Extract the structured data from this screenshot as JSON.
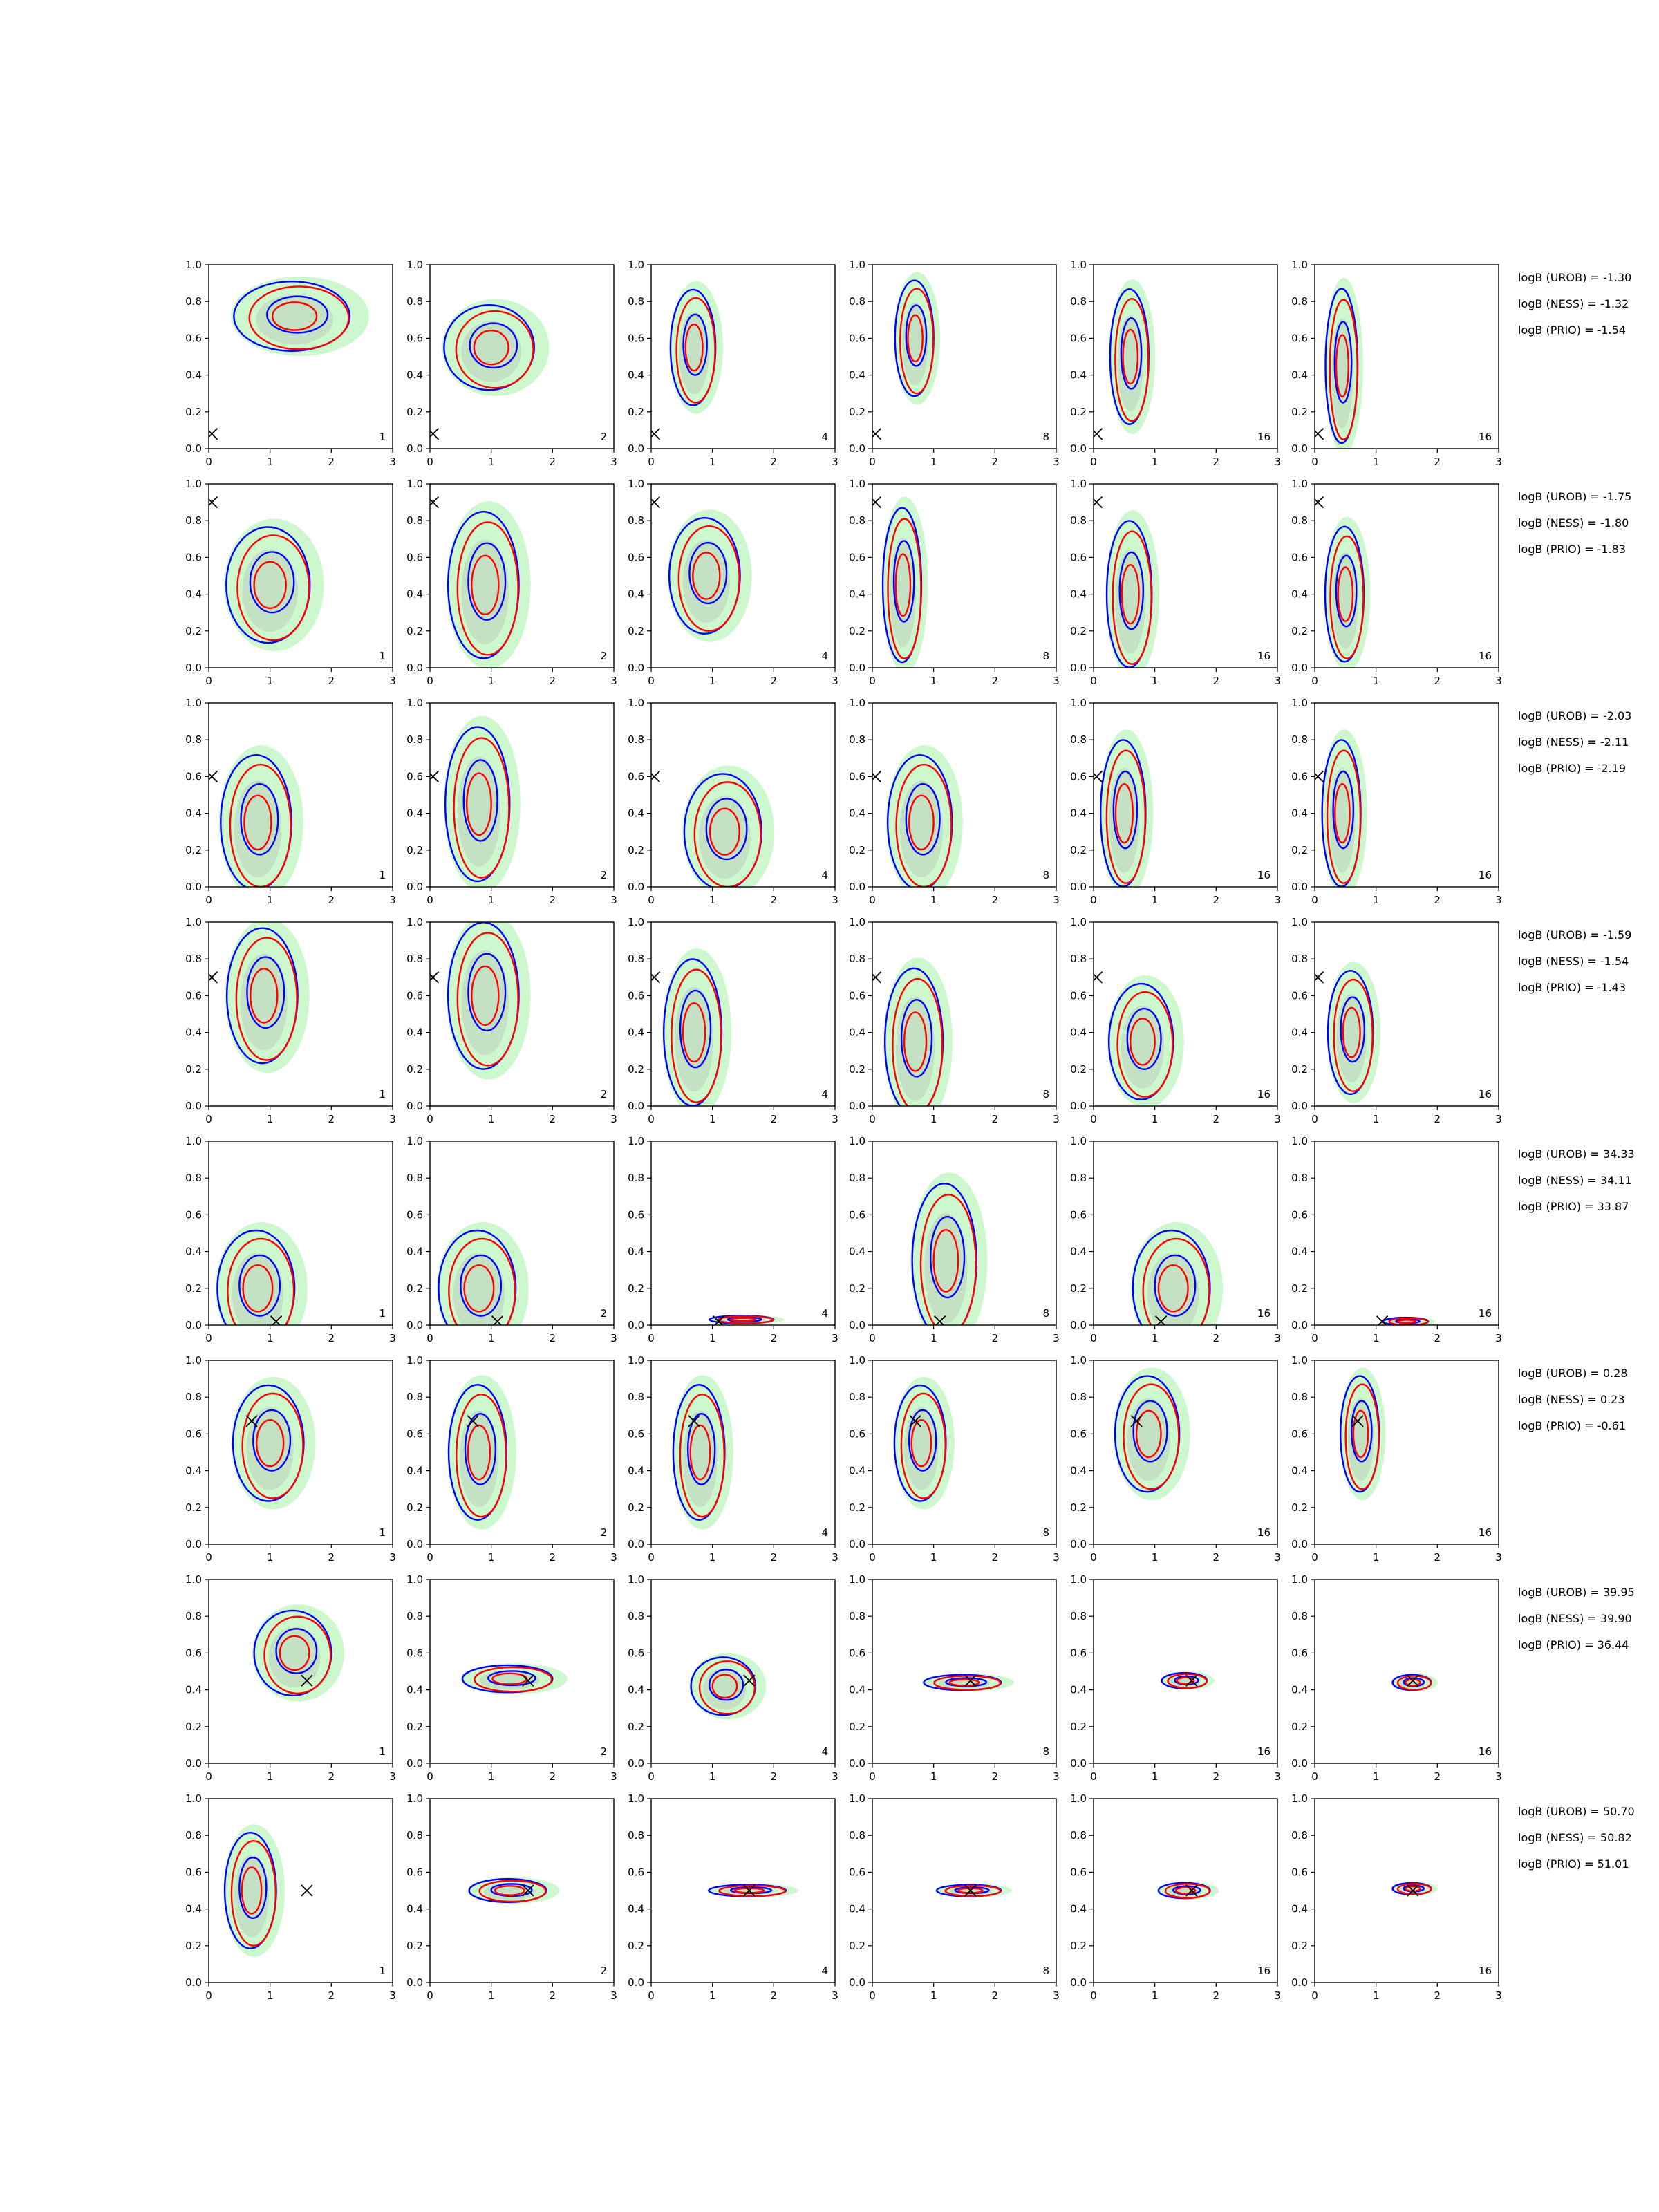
{
  "colors": {
    "posterior_A": "#ff0000",
    "posterior_B": "#0000ff",
    "samples_fill": "#90ee90",
    "prior_fill": "#b0b0b0",
    "truth_marker": "#000000"
  },
  "chart_data": {
    "type": "grid-of-2d-density-contours",
    "rows": 8,
    "cols": 6,
    "xlim": [
      0,
      3
    ],
    "ylim": [
      0,
      1
    ],
    "xticks": [
      "0",
      "1",
      "2",
      "3"
    ],
    "yticks": [
      "0.0",
      "0.2",
      "0.4",
      "0.6",
      "0.8",
      "1.0"
    ],
    "column_annotations": [
      "1",
      "2",
      "4",
      "8",
      "16",
      "16"
    ],
    "grid": false,
    "rows_data": [
      {
        "truth": [
          0.05,
          0.08
        ],
        "logB": [
          "logB (UROB) = -1.30",
          "logB (NESS) = -1.32",
          "logB (PRIO) = -1.54"
        ],
        "blobs": [
          {
            "c": [
              1.4,
              0.72
            ],
            "s": [
              0.9,
              0.18
            ]
          },
          {
            "c": [
              1.0,
              0.55
            ],
            "s": [
              0.7,
              0.22
            ]
          },
          {
            "c": [
              0.7,
              0.55
            ],
            "s": [
              0.35,
              0.3
            ]
          },
          {
            "c": [
              0.7,
              0.6
            ],
            "s": [
              0.3,
              0.3
            ]
          },
          {
            "c": [
              0.6,
              0.5
            ],
            "s": [
              0.3,
              0.35
            ]
          },
          {
            "c": [
              0.45,
              0.45
            ],
            "s": [
              0.25,
              0.4
            ]
          }
        ]
      },
      {
        "truth": [
          0.05,
          0.9
        ],
        "logB": [
          "logB (UROB) = -1.75",
          "logB (NESS) = -1.80",
          "logB (PRIO) = -1.83"
        ],
        "blobs": [
          {
            "c": [
              1.0,
              0.45
            ],
            "s": [
              0.65,
              0.3
            ]
          },
          {
            "c": [
              0.9,
              0.45
            ],
            "s": [
              0.55,
              0.38
            ]
          },
          {
            "c": [
              0.9,
              0.5
            ],
            "s": [
              0.55,
              0.3
            ]
          },
          {
            "c": [
              0.5,
              0.45
            ],
            "s": [
              0.3,
              0.4
            ]
          },
          {
            "c": [
              0.6,
              0.4
            ],
            "s": [
              0.35,
              0.38
            ]
          },
          {
            "c": [
              0.5,
              0.4
            ],
            "s": [
              0.3,
              0.35
            ]
          }
        ]
      },
      {
        "truth": [
          0.05,
          0.6
        ],
        "logB": [
          "logB (UROB) = -2.03",
          "logB (NESS) = -2.11",
          "logB (PRIO) = -2.19"
        ],
        "blobs": [
          {
            "c": [
              0.8,
              0.35
            ],
            "s": [
              0.55,
              0.35
            ]
          },
          {
            "c": [
              0.8,
              0.45
            ],
            "s": [
              0.5,
              0.4
            ]
          },
          {
            "c": [
              1.2,
              0.3
            ],
            "s": [
              0.6,
              0.3
            ]
          },
          {
            "c": [
              0.8,
              0.35
            ],
            "s": [
              0.5,
              0.35
            ]
          },
          {
            "c": [
              0.5,
              0.4
            ],
            "s": [
              0.35,
              0.38
            ]
          },
          {
            "c": [
              0.45,
              0.4
            ],
            "s": [
              0.3,
              0.38
            ]
          }
        ]
      },
      {
        "truth": [
          0.05,
          0.7
        ],
        "logB": [
          "logB (UROB) = -1.59",
          "logB (NESS) = -1.54",
          "logB (PRIO) = -1.43"
        ],
        "blobs": [
          {
            "c": [
              0.9,
              0.6
            ],
            "s": [
              0.55,
              0.35
            ]
          },
          {
            "c": [
              0.9,
              0.6
            ],
            "s": [
              0.55,
              0.38
            ]
          },
          {
            "c": [
              0.7,
              0.4
            ],
            "s": [
              0.45,
              0.38
            ]
          },
          {
            "c": [
              0.7,
              0.35
            ],
            "s": [
              0.45,
              0.38
            ]
          },
          {
            "c": [
              0.8,
              0.35
            ],
            "s": [
              0.5,
              0.3
            ]
          },
          {
            "c": [
              0.6,
              0.4
            ],
            "s": [
              0.35,
              0.32
            ]
          }
        ]
      },
      {
        "truth": [
          1.1,
          0.02
        ],
        "logB": [
          "logB (UROB) = 34.33",
          "logB (NESS) = 34.11",
          "logB (PRIO) = 33.87"
        ],
        "blobs": [
          {
            "c": [
              0.8,
              0.2
            ],
            "s": [
              0.6,
              0.3
            ]
          },
          {
            "c": [
              0.8,
              0.2
            ],
            "s": [
              0.6,
              0.3
            ]
          },
          {
            "c": [
              1.5,
              0.03
            ],
            "s": [
              0.5,
              0.02
            ]
          },
          {
            "c": [
              1.2,
              0.35
            ],
            "s": [
              0.5,
              0.4
            ]
          },
          {
            "c": [
              1.3,
              0.2
            ],
            "s": [
              0.6,
              0.3
            ]
          },
          {
            "c": [
              1.5,
              0.02
            ],
            "s": [
              0.35,
              0.02
            ]
          }
        ]
      },
      {
        "truth": [
          0.7,
          0.67
        ],
        "logB": [
          "logB (UROB) = 0.28",
          "logB (NESS) = 0.23",
          "logB (PRIO) = -0.61"
        ],
        "blobs": [
          {
            "c": [
              1.0,
              0.55
            ],
            "s": [
              0.55,
              0.3
            ]
          },
          {
            "c": [
              0.8,
              0.5
            ],
            "s": [
              0.45,
              0.35
            ]
          },
          {
            "c": [
              0.8,
              0.5
            ],
            "s": [
              0.4,
              0.35
            ]
          },
          {
            "c": [
              0.8,
              0.55
            ],
            "s": [
              0.4,
              0.3
            ]
          },
          {
            "c": [
              0.9,
              0.6
            ],
            "s": [
              0.5,
              0.3
            ]
          },
          {
            "c": [
              0.75,
              0.6
            ],
            "s": [
              0.3,
              0.3
            ]
          }
        ]
      },
      {
        "truth": [
          1.6,
          0.45
        ],
        "logB": [
          "logB (UROB) = 39.95",
          "logB (NESS) = 39.90",
          "logB (PRIO) = 36.44"
        ],
        "blobs": [
          {
            "c": [
              1.4,
              0.6
            ],
            "s": [
              0.6,
              0.22
            ]
          },
          {
            "c": [
              1.3,
              0.46
            ],
            "s": [
              0.7,
              0.07
            ]
          },
          {
            "c": [
              1.2,
              0.42
            ],
            "s": [
              0.5,
              0.15
            ]
          },
          {
            "c": [
              1.5,
              0.44
            ],
            "s": [
              0.6,
              0.04
            ]
          },
          {
            "c": [
              1.5,
              0.45
            ],
            "s": [
              0.35,
              0.04
            ]
          },
          {
            "c": [
              1.6,
              0.44
            ],
            "s": [
              0.3,
              0.04
            ]
          }
        ]
      },
      {
        "truth": [
          1.6,
          0.5
        ],
        "logB": [
          "logB (UROB) = 50.70",
          "logB (NESS) = 50.82",
          "logB (PRIO) = 51.01"
        ],
        "blobs": [
          {
            "c": [
              0.7,
              0.5
            ],
            "s": [
              0.4,
              0.3
            ]
          },
          {
            "c": [
              1.3,
              0.5
            ],
            "s": [
              0.6,
              0.06
            ]
          },
          {
            "c": [
              1.6,
              0.5
            ],
            "s": [
              0.6,
              0.03
            ]
          },
          {
            "c": [
              1.6,
              0.5
            ],
            "s": [
              0.5,
              0.03
            ]
          },
          {
            "c": [
              1.5,
              0.5
            ],
            "s": [
              0.4,
              0.04
            ]
          },
          {
            "c": [
              1.6,
              0.51
            ],
            "s": [
              0.3,
              0.03
            ]
          }
        ]
      }
    ]
  }
}
